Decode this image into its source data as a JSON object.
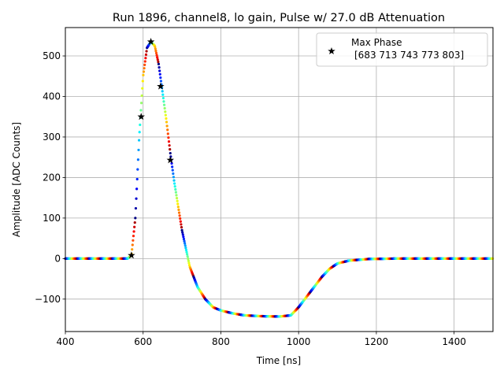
{
  "chart_data": {
    "type": "scatter",
    "title": "Run 1896, channel8, lo gain, Pulse w/ 27.0 dB Attenuation",
    "xlabel": "Time [ns]",
    "ylabel": "Amplitude [ADC Counts]",
    "xlim": [
      400,
      1500
    ],
    "ylim": [
      -180,
      570
    ],
    "xticks": [
      400,
      600,
      800,
      1000,
      1200,
      1400
    ],
    "yticks": [
      -100,
      0,
      100,
      200,
      300,
      400,
      500
    ],
    "grid": true,
    "legend": {
      "placement": "top-right",
      "label_line1": "Max Phase",
      "label_line2": "[683 713 743 773 803]"
    },
    "series": [
      {
        "marker": "dot",
        "colormap": "jet",
        "description_points": [
          [
            400,
            0
          ],
          [
            560,
            0
          ],
          [
            570,
            8
          ],
          [
            580,
            100
          ],
          [
            590,
            300
          ],
          [
            600,
            450
          ],
          [
            610,
            520
          ],
          [
            620,
            535
          ],
          [
            630,
            525
          ],
          [
            640,
            480
          ],
          [
            650,
            410
          ],
          [
            660,
            340
          ],
          [
            670,
            260
          ],
          [
            680,
            190
          ],
          [
            700,
            70
          ],
          [
            720,
            -20
          ],
          [
            740,
            -70
          ],
          [
            760,
            -100
          ],
          [
            780,
            -120
          ],
          [
            800,
            -128
          ],
          [
            830,
            -135
          ],
          [
            860,
            -140
          ],
          [
            900,
            -142
          ],
          [
            950,
            -143
          ],
          [
            980,
            -140
          ],
          [
            1000,
            -120
          ],
          [
            1020,
            -95
          ],
          [
            1040,
            -70
          ],
          [
            1060,
            -45
          ],
          [
            1080,
            -25
          ],
          [
            1100,
            -12
          ],
          [
            1130,
            -5
          ],
          [
            1180,
            -1
          ],
          [
            1250,
            0
          ],
          [
            1500,
            0
          ]
        ]
      },
      {
        "name": "Max Phase",
        "marker": "star",
        "color": "#000000",
        "points": [
          [
            570,
            8
          ],
          [
            595,
            350
          ],
          [
            620,
            535
          ],
          [
            645,
            425
          ],
          [
            670,
            243
          ]
        ]
      }
    ]
  }
}
